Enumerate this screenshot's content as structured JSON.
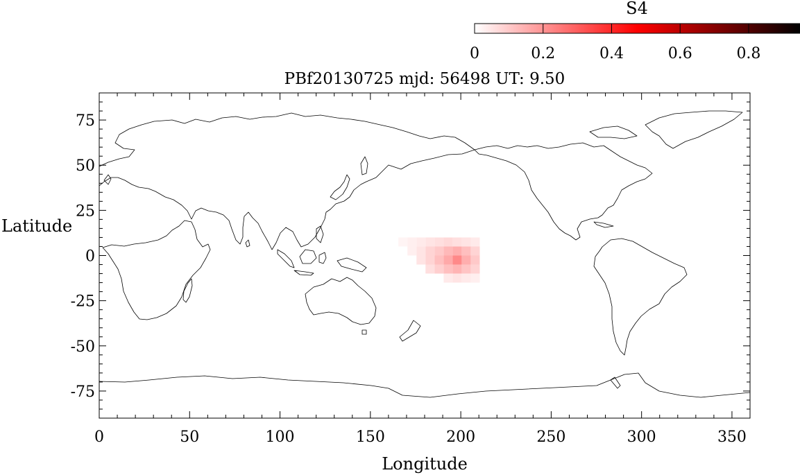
{
  "title": "PBf20130725  mjd: 56498  UT:   9.50",
  "colorbar": {
    "label": "S4",
    "ticks": [
      "0",
      "0.2",
      "0.4",
      "0.6",
      "0.8"
    ],
    "range": [
      0,
      0.95
    ],
    "colors": [
      "#ffffff",
      "#ff0000",
      "#000000"
    ]
  },
  "axes": {
    "xlabel": "Longitude",
    "ylabel": "Latitude",
    "xlim": [
      0,
      360
    ],
    "ylim": [
      -90,
      90
    ],
    "xticks": [
      0,
      50,
      100,
      150,
      200,
      250,
      300,
      350
    ],
    "yticks": [
      75,
      50,
      25,
      0,
      -25,
      -50,
      -75
    ]
  },
  "chart_data": {
    "type": "heatmap",
    "title": "PBf20130725  mjd: 56498  UT:   9.50",
    "xlabel": "Longitude",
    "ylabel": "Latitude",
    "xlim": [
      0,
      360
    ],
    "ylim": [
      -90,
      90
    ],
    "value_label": "S4",
    "cells": [
      {
        "lon": 168,
        "lat": 7.5,
        "value": 0.02
      },
      {
        "lon": 173,
        "lat": 7.5,
        "value": 0.03
      },
      {
        "lon": 178,
        "lat": 7.5,
        "value": 0.04
      },
      {
        "lon": 183,
        "lat": 7.5,
        "value": 0.05
      },
      {
        "lon": 188,
        "lat": 7.5,
        "value": 0.06
      },
      {
        "lon": 193,
        "lat": 7.5,
        "value": 0.07
      },
      {
        "lon": 198,
        "lat": 7.5,
        "value": 0.06
      },
      {
        "lon": 203,
        "lat": 7.5,
        "value": 0.05
      },
      {
        "lon": 208,
        "lat": 7.5,
        "value": 0.04
      },
      {
        "lon": 173,
        "lat": 2.5,
        "value": 0.03
      },
      {
        "lon": 178,
        "lat": 2.5,
        "value": 0.05
      },
      {
        "lon": 183,
        "lat": 2.5,
        "value": 0.08
      },
      {
        "lon": 188,
        "lat": 2.5,
        "value": 0.1
      },
      {
        "lon": 193,
        "lat": 2.5,
        "value": 0.13
      },
      {
        "lon": 198,
        "lat": 2.5,
        "value": 0.15
      },
      {
        "lon": 203,
        "lat": 2.5,
        "value": 0.12
      },
      {
        "lon": 208,
        "lat": 2.5,
        "value": 0.08
      },
      {
        "lon": 178,
        "lat": -2.5,
        "value": 0.05
      },
      {
        "lon": 183,
        "lat": -2.5,
        "value": 0.08
      },
      {
        "lon": 188,
        "lat": -2.5,
        "value": 0.12
      },
      {
        "lon": 193,
        "lat": -2.5,
        "value": 0.16
      },
      {
        "lon": 198,
        "lat": -2.5,
        "value": 0.22
      },
      {
        "lon": 203,
        "lat": -2.5,
        "value": 0.15
      },
      {
        "lon": 208,
        "lat": -2.5,
        "value": 0.1
      },
      {
        "lon": 183,
        "lat": -7.5,
        "value": 0.06
      },
      {
        "lon": 188,
        "lat": -7.5,
        "value": 0.09
      },
      {
        "lon": 193,
        "lat": -7.5,
        "value": 0.12
      },
      {
        "lon": 198,
        "lat": -7.5,
        "value": 0.14
      },
      {
        "lon": 203,
        "lat": -7.5,
        "value": 0.11
      },
      {
        "lon": 208,
        "lat": -7.5,
        "value": 0.08
      },
      {
        "lon": 193,
        "lat": -12.5,
        "value": 0.04
      },
      {
        "lon": 198,
        "lat": -12.5,
        "value": 0.05
      },
      {
        "lon": 203,
        "lat": -12.5,
        "value": 0.04
      },
      {
        "lon": 208,
        "lat": -12.5,
        "value": 0.03
      }
    ]
  }
}
